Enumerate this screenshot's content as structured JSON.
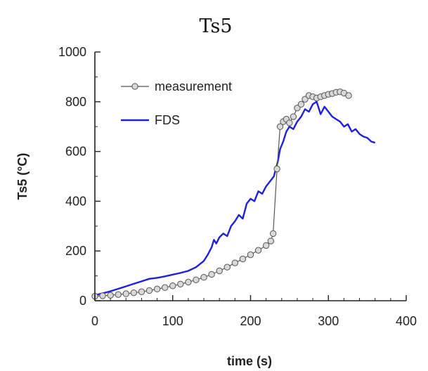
{
  "chart_data": {
    "type": "line",
    "title": "Ts5",
    "xlabel": "time (s)",
    "ylabel": "Ts5 (°C)",
    "xlim": [
      0,
      400
    ],
    "ylim": [
      0,
      1000
    ],
    "xticks": [
      0,
      100,
      200,
      300,
      400
    ],
    "yticks": [
      0,
      200,
      400,
      600,
      800,
      1000
    ],
    "grid": false,
    "legend_position": "top-left",
    "series": [
      {
        "name": "measurement",
        "color": "#555555",
        "marker": "circle",
        "x": [
          0,
          10,
          20,
          30,
          40,
          50,
          60,
          70,
          80,
          90,
          100,
          110,
          120,
          130,
          140,
          150,
          160,
          170,
          180,
          190,
          200,
          210,
          220,
          226,
          229,
          234,
          238,
          242,
          246,
          250,
          255,
          260,
          265,
          270,
          275,
          280,
          285,
          290,
          295,
          300,
          305,
          310,
          315,
          320,
          326
        ],
        "y": [
          18,
          20,
          22,
          25,
          28,
          32,
          36,
          41,
          47,
          53,
          60,
          67,
          75,
          84,
          94,
          106,
          120,
          135,
          152,
          168,
          185,
          203,
          222,
          240,
          270,
          530,
          700,
          720,
          730,
          715,
          740,
          775,
          790,
          810,
          825,
          820,
          815,
          820,
          825,
          830,
          833,
          838,
          840,
          835,
          825
        ]
      },
      {
        "name": "FDS",
        "color": "#1f1fe0",
        "marker": "none",
        "x": [
          0,
          10,
          20,
          30,
          40,
          50,
          60,
          70,
          80,
          90,
          100,
          110,
          120,
          130,
          140,
          145,
          150,
          153,
          156,
          160,
          165,
          170,
          175,
          180,
          185,
          190,
          195,
          200,
          205,
          210,
          215,
          220,
          225,
          230,
          235,
          238,
          242,
          246,
          250,
          255,
          260,
          265,
          270,
          275,
          280,
          285,
          290,
          295,
          300,
          305,
          310,
          315,
          320,
          325,
          330,
          335,
          340,
          345,
          350,
          355,
          360
        ],
        "y": [
          22,
          30,
          38,
          48,
          58,
          68,
          78,
          88,
          92,
          98,
          105,
          112,
          120,
          135,
          160,
          185,
          215,
          245,
          230,
          255,
          270,
          260,
          300,
          320,
          345,
          330,
          390,
          410,
          400,
          440,
          430,
          460,
          480,
          500,
          560,
          610,
          640,
          680,
          700,
          690,
          720,
          740,
          770,
          760,
          790,
          800,
          750,
          780,
          760,
          740,
          730,
          720,
          700,
          710,
          680,
          690,
          670,
          660,
          655,
          640,
          635
        ]
      }
    ]
  }
}
